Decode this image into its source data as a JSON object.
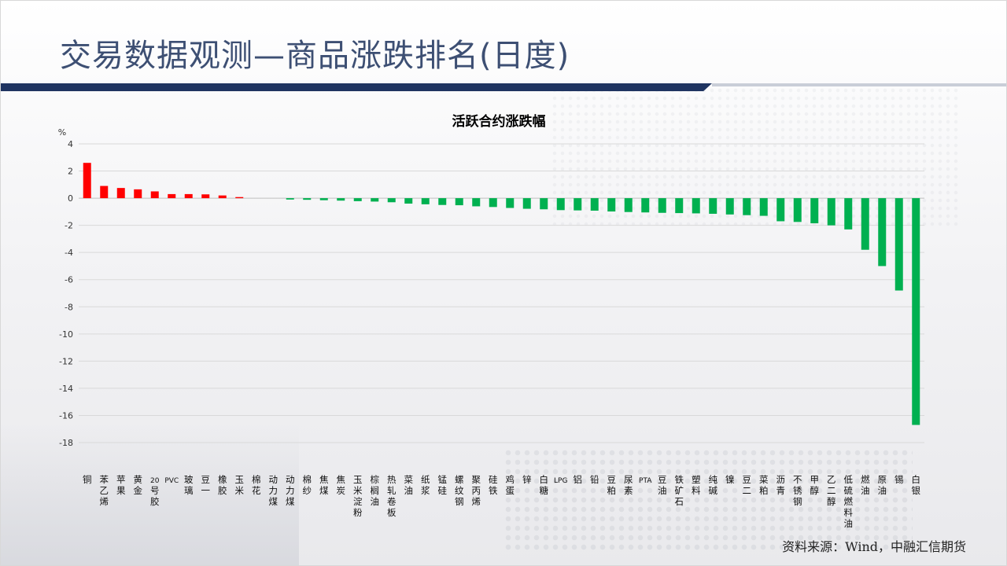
{
  "slide": {
    "title": "交易数据观测—商品涨跌排名(日度)",
    "source": "资料来源：Wind，中融汇信期货"
  },
  "colors": {
    "title": "#3d4f73",
    "title_bar": "#1f3461",
    "positive": "#ff0000",
    "negative": "#00b050",
    "grid": "#d9d9d9"
  },
  "chart_data": {
    "type": "bar",
    "title": "活跃合约涨跌幅",
    "ylabel": "%",
    "ylim": [
      -18,
      4
    ],
    "yticks": [
      4,
      2,
      0,
      -2,
      -4,
      -6,
      -8,
      -10,
      -12,
      -14,
      -16,
      -18
    ],
    "grid": true,
    "legend": "none",
    "categories": [
      "铜",
      "苯乙烯",
      "苹果",
      "黄金",
      "20号胶",
      "PVC",
      "玻璃",
      "豆一",
      "橡胶",
      "玉米",
      "棉花",
      "动力煤",
      "动力煤",
      "棉纱",
      "焦煤",
      "焦炭",
      "玉米淀粉",
      "棕榈油",
      "热轧卷板",
      "菜油",
      "纸浆",
      "锰硅",
      "螺纹钢",
      "聚丙烯",
      "硅铁",
      "鸡蛋",
      "锌",
      "白糖",
      "LPG",
      "铝",
      "铅",
      "豆粕",
      "尿素",
      "PTA",
      "豆油",
      "铁矿石",
      "塑料",
      "纯碱",
      "镍",
      "豆二",
      "菜粕",
      "沥青",
      "不锈钢",
      "甲醇",
      "乙二醇",
      "低硫燃料油",
      "燃油",
      "原油",
      "锡",
      "白银"
    ],
    "values": [
      2.6,
      0.9,
      0.75,
      0.65,
      0.5,
      0.3,
      0.3,
      0.28,
      0.2,
      0.08,
      0.0,
      0.0,
      -0.1,
      -0.12,
      -0.15,
      -0.18,
      -0.22,
      -0.25,
      -0.3,
      -0.4,
      -0.45,
      -0.5,
      -0.52,
      -0.6,
      -0.65,
      -0.72,
      -0.78,
      -0.82,
      -0.88,
      -0.9,
      -0.92,
      -0.98,
      -1.02,
      -1.05,
      -1.08,
      -1.1,
      -1.12,
      -1.15,
      -1.2,
      -1.25,
      -1.3,
      -1.7,
      -1.75,
      -1.85,
      -2.0,
      -2.3,
      -3.8,
      -5.0,
      -6.8,
      -16.7
    ]
  }
}
